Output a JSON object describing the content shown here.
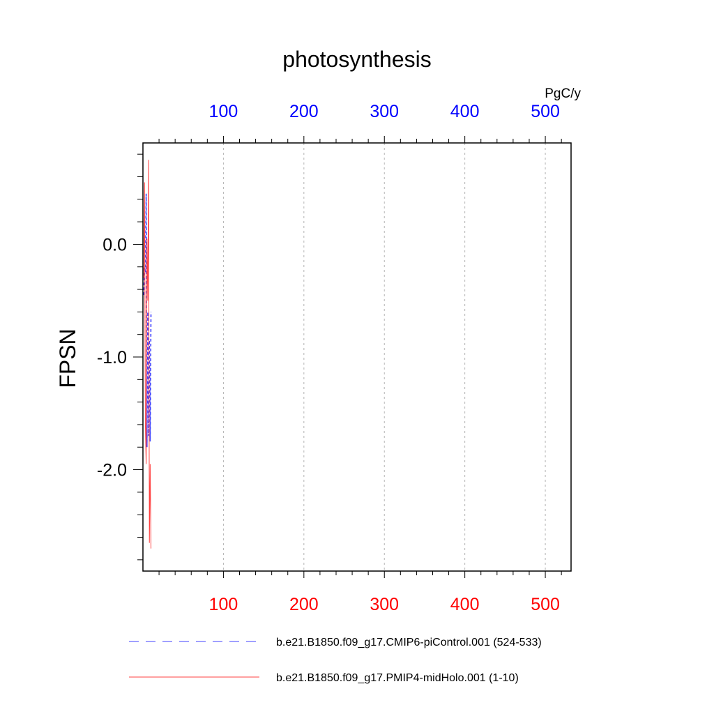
{
  "chart_data": {
    "type": "line",
    "title": "photosynthesis",
    "units": "PgC/y",
    "ylabel": "FPSN",
    "xlim": [
      0,
      532
    ],
    "ylim": [
      -2.9,
      0.9
    ],
    "yticks": [
      0.0,
      -1.0,
      -2.0
    ],
    "ytick_labels": [
      "0.0",
      "-1.0",
      "-2.0"
    ],
    "xticks": [
      100,
      200,
      300,
      400,
      500
    ],
    "xtick_labels_top": [
      "100",
      "200",
      "300",
      "400",
      "500"
    ],
    "xtick_labels_bottom": [
      "100",
      "200",
      "300",
      "400",
      "500"
    ],
    "grid": "vertical dashed",
    "colors": {
      "top_axis": "#0000ff",
      "bottom_axis": "#ff0000",
      "series1": "#4040ff",
      "series2": "#ff4040",
      "grid": "#b4b4b4"
    },
    "series": [
      {
        "name": "b.e21.B1850.f09_g17.CMIP6-piControl.001 (524-533)",
        "style": "dashed",
        "color": "#4040ff",
        "x": [
          1,
          2,
          3,
          4,
          5,
          6,
          7,
          8,
          9,
          10
        ],
        "y": [
          -0.45,
          -0.2,
          -0.25,
          0.45,
          -1.8,
          -0.6,
          -1.7,
          -0.85,
          -1.75,
          -0.6
        ]
      },
      {
        "name": "b.e21.B1850.f09_g17.PMIP4-midHolo.001 (1-10)",
        "style": "solid",
        "color": "#ff4040",
        "x": [
          1,
          2,
          3,
          4,
          5,
          6,
          7,
          8,
          9,
          10
        ],
        "y": [
          -0.3,
          0.55,
          -1.6,
          -1.95,
          0.05,
          -0.5,
          0.75,
          -2.65,
          -1.95,
          -2.7
        ]
      }
    ],
    "legend_position": "bottom"
  }
}
